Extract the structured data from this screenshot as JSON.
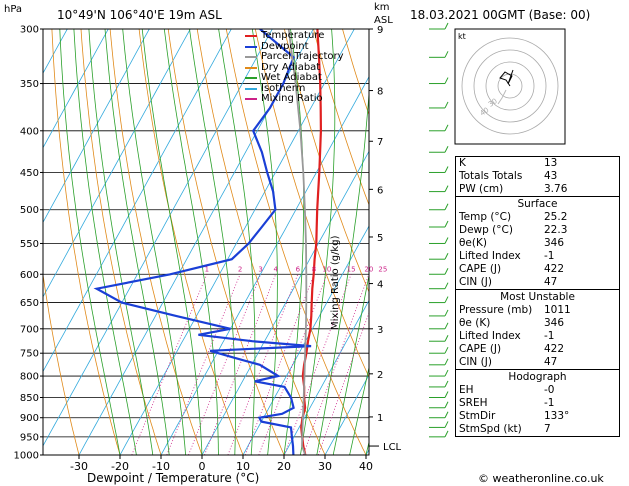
{
  "header": {
    "left_unit": "hPa",
    "location": "10°49'N 106°40'E 19m ASL",
    "km_unit": "km",
    "asl_unit": "ASL",
    "datetime": "18.03.2021 00GMT (Base: 00)"
  },
  "legend": [
    {
      "label": "Temperature",
      "color": "#e02020"
    },
    {
      "label": "Dewpoint",
      "color": "#1a3fd6"
    },
    {
      "label": "Parcel Trajectory",
      "color": "#999999"
    },
    {
      "label": "Dry Adiabat",
      "color": "#e08a1a"
    },
    {
      "label": "Wet Adiabat",
      "color": "#2aa02a"
    },
    {
      "label": "Isotherm",
      "color": "#33aadd"
    },
    {
      "label": "Mixing Ratio",
      "color": "#cc2288"
    }
  ],
  "chart_data": {
    "type": "line",
    "title": "10°49'N 106°40'E 19m ASL",
    "xlabel": "Dewpoint / Temperature (°C)",
    "ylabel": "hPa",
    "right_label": "Mixing Ratio (g/kg)",
    "x_ticks": [
      -30,
      -20,
      -10,
      0,
      10,
      20,
      30,
      40
    ],
    "pressure_ticks": [
      300,
      350,
      400,
      450,
      500,
      550,
      600,
      650,
      700,
      750,
      800,
      850,
      900,
      950,
      1000
    ],
    "km_ticks": [
      {
        "label": "9",
        "p": 300
      },
      {
        "label": "8",
        "p": 357
      },
      {
        "label": "7",
        "p": 412
      },
      {
        "label": "6",
        "p": 472
      },
      {
        "label": "5",
        "p": 540
      },
      {
        "label": "4",
        "p": 616
      },
      {
        "label": "3",
        "p": 700
      },
      {
        "label": "2",
        "p": 795
      },
      {
        "label": "1",
        "p": 898
      }
    ],
    "mixing_ratio_labels": [
      "1",
      "2",
      "3",
      "4",
      "6",
      "8",
      "10",
      "15",
      "20",
      "25"
    ],
    "lcl": {
      "label": "LCL",
      "p": 975
    },
    "series": [
      {
        "name": "Temperature",
        "color": "#e02020",
        "points": [
          [
            1000,
            25.2
          ],
          [
            975,
            23.5
          ],
          [
            950,
            22.0
          ],
          [
            925,
            20.5
          ],
          [
            900,
            19.5
          ],
          [
            875,
            18.8
          ],
          [
            850,
            17.2
          ],
          [
            825,
            15.8
          ],
          [
            800,
            14.0
          ],
          [
            775,
            12.8
          ],
          [
            750,
            11.8
          ],
          [
            725,
            10.6
          ],
          [
            700,
            9.5
          ],
          [
            675,
            8.0
          ],
          [
            650,
            6.3
          ],
          [
            625,
            4.6
          ],
          [
            600,
            3.0
          ],
          [
            575,
            1.2
          ],
          [
            550,
            -0.5
          ],
          [
            525,
            -2.6
          ],
          [
            500,
            -4.8
          ],
          [
            475,
            -7.0
          ],
          [
            450,
            -9.3
          ],
          [
            425,
            -11.8
          ],
          [
            400,
            -14.5
          ],
          [
            375,
            -17.6
          ],
          [
            350,
            -21.0
          ],
          [
            325,
            -24.8
          ],
          [
            300,
            -29.0
          ]
        ]
      },
      {
        "name": "Dewpoint",
        "color": "#1a3fd6",
        "points": [
          [
            1000,
            22.3
          ],
          [
            975,
            21.0
          ],
          [
            950,
            19.5
          ],
          [
            925,
            18.0
          ],
          [
            910,
            10.0
          ],
          [
            900,
            9.0
          ],
          [
            890,
            14.0
          ],
          [
            875,
            16.0
          ],
          [
            850,
            14.0
          ],
          [
            825,
            11.0
          ],
          [
            812,
            3.0
          ],
          [
            800,
            8.0
          ],
          [
            775,
            2.0
          ],
          [
            760,
            -5.0
          ],
          [
            745,
            -12.0
          ],
          [
            735,
            12.0
          ],
          [
            725,
            -3.0
          ],
          [
            712,
            -17.0
          ],
          [
            700,
            -10.0
          ],
          [
            675,
            -25.0
          ],
          [
            650,
            -40.0
          ],
          [
            625,
            -48.0
          ],
          [
            600,
            -32.0
          ],
          [
            575,
            -19.0
          ],
          [
            550,
            -17.0
          ],
          [
            525,
            -16.0
          ],
          [
            500,
            -15.0
          ],
          [
            475,
            -18.0
          ],
          [
            450,
            -22.0
          ],
          [
            425,
            -26.0
          ],
          [
            400,
            -31.0
          ],
          [
            375,
            -30.0
          ],
          [
            350,
            -30.0
          ],
          [
            325,
            -31.0
          ],
          [
            300,
            -43.0
          ]
        ]
      },
      {
        "name": "Parcel Trajectory",
        "color": "#999999",
        "points": [
          [
            1000,
            25.2
          ],
          [
            975,
            23.2
          ],
          [
            950,
            22.0
          ],
          [
            900,
            19.6
          ],
          [
            850,
            17.1
          ],
          [
            800,
            14.4
          ],
          [
            750,
            11.5
          ],
          [
            700,
            8.4
          ],
          [
            650,
            5.0
          ],
          [
            600,
            1.2
          ],
          [
            550,
            -3.0
          ],
          [
            500,
            -7.8
          ],
          [
            450,
            -13.2
          ],
          [
            400,
            -19.5
          ],
          [
            350,
            -27.0
          ],
          [
            300,
            -36.0
          ]
        ]
      }
    ]
  },
  "hodograph": {
    "label": "kt",
    "ring_labels": [
      "40",
      "30"
    ]
  },
  "indices": [
    {
      "label": "K",
      "value": "13"
    },
    {
      "label": "Totals Totals",
      "value": "43"
    },
    {
      "label": "PW (cm)",
      "value": "3.76"
    }
  ],
  "surface": {
    "title": "Surface",
    "rows": [
      {
        "label": "Temp (°C)",
        "value": "25.2"
      },
      {
        "label": "Dewp (°C)",
        "value": "22.3"
      },
      {
        "label": "θe(K)",
        "value": "346"
      },
      {
        "label": "Lifted Index",
        "value": "-1"
      },
      {
        "label": "CAPE (J)",
        "value": "422"
      },
      {
        "label": "CIN (J)",
        "value": "47"
      }
    ]
  },
  "most_unstable": {
    "title": "Most Unstable",
    "rows": [
      {
        "label": "Pressure (mb)",
        "value": "1011"
      },
      {
        "label": "θe (K)",
        "value": "346"
      },
      {
        "label": "Lifted Index",
        "value": "-1"
      },
      {
        "label": "CAPE (J)",
        "value": "422"
      },
      {
        "label": "CIN (J)",
        "value": "47"
      }
    ]
  },
  "hodograph_table": {
    "title": "Hodograph",
    "rows": [
      {
        "label": "EH",
        "value": "-0"
      },
      {
        "label": "SREH",
        "value": "-1"
      },
      {
        "label": "StmDir",
        "value": "133°"
      },
      {
        "label": "StmSpd (kt)",
        "value": "7"
      }
    ]
  },
  "footer": {
    "credit": "© weatheronline.co.uk"
  }
}
